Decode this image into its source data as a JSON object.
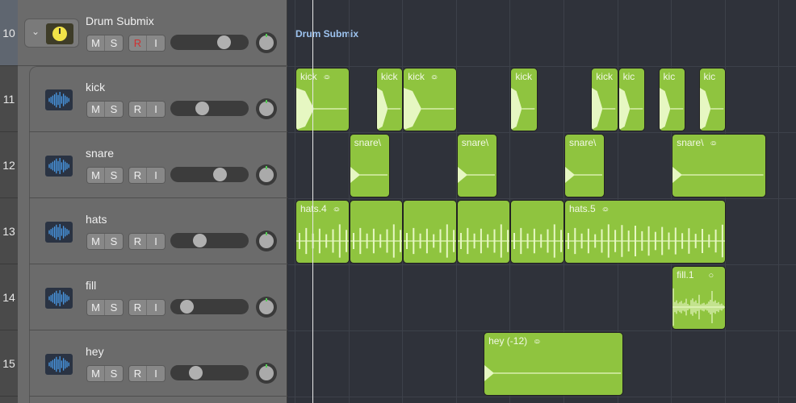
{
  "accent_clip_color": "#8fc43f",
  "folder_region_label": "Drum Submix",
  "tracks": [
    {
      "number": "10",
      "name": "Drum Submix",
      "type": "folder",
      "icon": "tuner-icon",
      "buttons": [
        "M",
        "S",
        "R",
        "I"
      ],
      "volume": 0.73,
      "record_armed": true
    },
    {
      "number": "11",
      "name": "kick",
      "type": "audio",
      "icon": "waveform-icon",
      "buttons": [
        "M",
        "S",
        "R",
        "I"
      ],
      "volume": 0.38
    },
    {
      "number": "12",
      "name": "snare",
      "type": "audio",
      "icon": "waveform-icon",
      "buttons": [
        "M",
        "S",
        "R",
        "I"
      ],
      "volume": 0.67
    },
    {
      "number": "13",
      "name": "hats",
      "type": "audio",
      "icon": "waveform-icon",
      "buttons": [
        "M",
        "S",
        "R",
        "I"
      ],
      "volume": 0.34
    },
    {
      "number": "14",
      "name": "fill",
      "type": "audio",
      "icon": "waveform-icon",
      "buttons": [
        "M",
        "S",
        "R",
        "I"
      ],
      "volume": 0.14
    },
    {
      "number": "15",
      "name": "hey",
      "type": "audio",
      "icon": "waveform-icon",
      "buttons": [
        "M",
        "S",
        "R",
        "I"
      ],
      "volume": 0.28
    }
  ],
  "regions": [
    {
      "track": 1,
      "label": "kick",
      "loop": true,
      "start": 0,
      "len": 1,
      "wave": "kick"
    },
    {
      "track": 1,
      "label": "kick",
      "start": 1.5,
      "len": 0.5,
      "wave": "kick"
    },
    {
      "track": 1,
      "label": "kick",
      "loop": true,
      "start": 2,
      "len": 1,
      "wave": "kick"
    },
    {
      "track": 1,
      "label": "kick",
      "start": 4,
      "len": 0.5,
      "wave": "kick"
    },
    {
      "track": 1,
      "label": "kick",
      "start": 5.5,
      "len": 0.5,
      "wave": "kick"
    },
    {
      "track": 1,
      "label": "kic",
      "start": 6,
      "len": 0.5,
      "wave": "kick"
    },
    {
      "track": 1,
      "label": "kic",
      "start": 6.75,
      "len": 0.5,
      "wave": "kick"
    },
    {
      "track": 1,
      "label": "kic",
      "start": 7.5,
      "len": 0.5,
      "wave": "kick"
    },
    {
      "track": 2,
      "label": "snare\\",
      "start": 1,
      "len": 0.75,
      "wave": "snare"
    },
    {
      "track": 2,
      "label": "snare\\",
      "start": 3,
      "len": 0.75,
      "wave": "snare"
    },
    {
      "track": 2,
      "label": "snare\\",
      "start": 5,
      "len": 0.75,
      "wave": "snare"
    },
    {
      "track": 2,
      "label": "snare\\",
      "loop": true,
      "start": 7,
      "len": 1.75,
      "wave": "snare"
    },
    {
      "track": 3,
      "label": "hats.4",
      "loop": true,
      "start": 0,
      "len": 1,
      "wave": "hats"
    },
    {
      "track": 3,
      "label": "",
      "start": 1,
      "len": 1,
      "wave": "hats"
    },
    {
      "track": 3,
      "label": "",
      "start": 2,
      "len": 1,
      "wave": "hats"
    },
    {
      "track": 3,
      "label": "",
      "start": 3,
      "len": 1,
      "wave": "hats"
    },
    {
      "track": 3,
      "label": "",
      "start": 4,
      "len": 1,
      "wave": "hats"
    },
    {
      "track": 3,
      "label": "hats.5",
      "loop": true,
      "start": 5,
      "len": 3,
      "wave": "hats"
    },
    {
      "track": 4,
      "label": "fill.1",
      "single_loop": true,
      "start": 7,
      "len": 1,
      "wave": "fill"
    },
    {
      "track": 5,
      "label": "hey (-12)",
      "loop": true,
      "start": 3.5,
      "len": 2.6,
      "wave": "snare"
    }
  ]
}
